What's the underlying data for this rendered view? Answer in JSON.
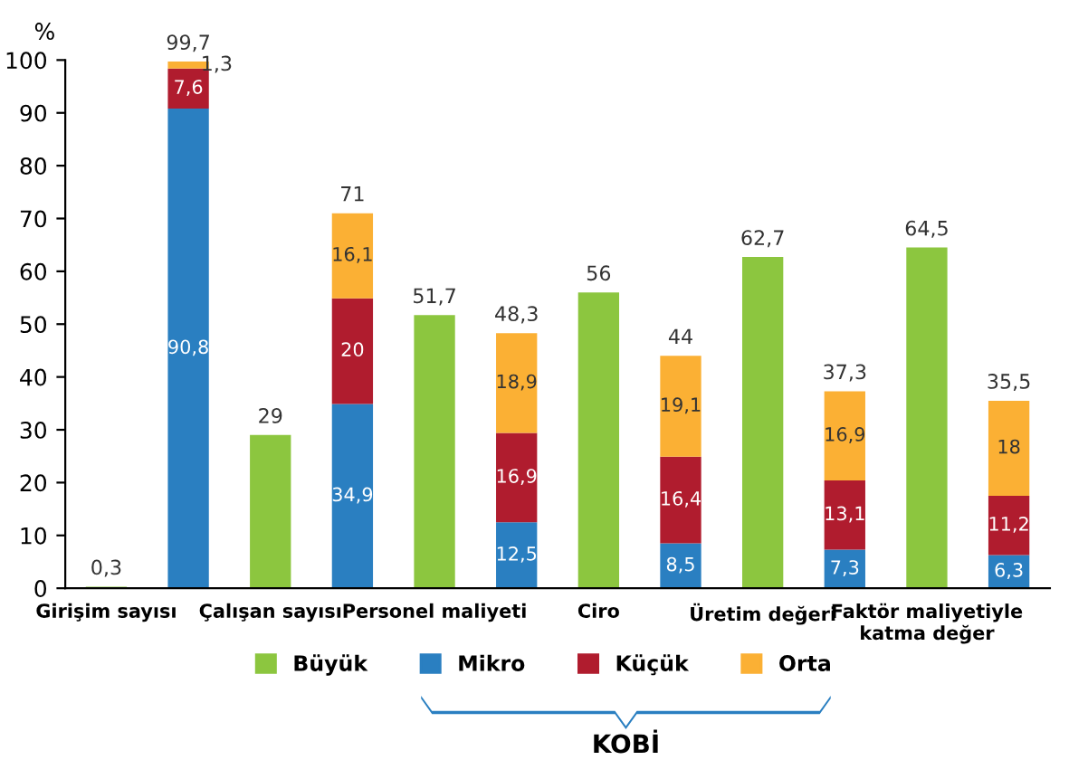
{
  "chart_data": {
    "type": "bar",
    "stacked": true,
    "ylabel": "%",
    "categories": [
      "Girişim sayısı",
      null,
      "Çalışan sayısı",
      null,
      "Personel maliyeti",
      null,
      "Ciro",
      null,
      "Üretim değeri",
      null,
      "Faktör maliyetiyle\nkatma değer",
      null
    ],
    "series": [
      {
        "name": "Büyük",
        "color": "#8cc63f",
        "values": [
          0.3,
          null,
          29,
          null,
          51.7,
          null,
          56,
          null,
          62.7,
          null,
          64.5,
          null
        ],
        "value_labels": [
          "0,3",
          null,
          "29",
          null,
          "51,7",
          null,
          "56",
          null,
          "62,7",
          null,
          "64,5",
          null
        ]
      },
      {
        "name": "Mikro",
        "color": "#2a7fc1",
        "values": [
          null,
          90.8,
          null,
          34.9,
          null,
          12.5,
          null,
          8.5,
          null,
          7.3,
          null,
          6.3
        ],
        "value_labels": [
          null,
          "90,8",
          null,
          "34,9",
          null,
          "12,5",
          null,
          "8,5",
          null,
          "7,3",
          null,
          "6,3"
        ]
      },
      {
        "name": "Küçük",
        "color": "#b01c2e",
        "values": [
          null,
          7.6,
          null,
          20,
          null,
          16.9,
          null,
          16.4,
          null,
          13.1,
          null,
          11.2
        ],
        "value_labels": [
          null,
          "7,6",
          null,
          "20",
          null,
          "16,9",
          null,
          "16,4",
          null,
          "13,1",
          null,
          "11,2"
        ]
      },
      {
        "name": "Orta",
        "color": "#fbb034",
        "values": [
          null,
          1.3,
          null,
          16.1,
          null,
          18.9,
          null,
          19.1,
          null,
          16.9,
          null,
          18
        ],
        "value_labels": [
          null,
          "1,3",
          null,
          "16,1",
          null,
          "18,9",
          null,
          "19,1",
          null,
          "16,9",
          null,
          "18"
        ]
      }
    ],
    "totals": [
      null,
      "99,7",
      null,
      "71",
      null,
      "48,3",
      null,
      "44",
      null,
      "37,3",
      null,
      "35,5"
    ],
    "ylim": [
      0,
      100
    ],
    "yticks": [
      0,
      10,
      20,
      30,
      40,
      50,
      60,
      70,
      80,
      90,
      100
    ],
    "grid": false,
    "legend": "bottom",
    "annotations": [
      "KOBİ"
    ]
  }
}
